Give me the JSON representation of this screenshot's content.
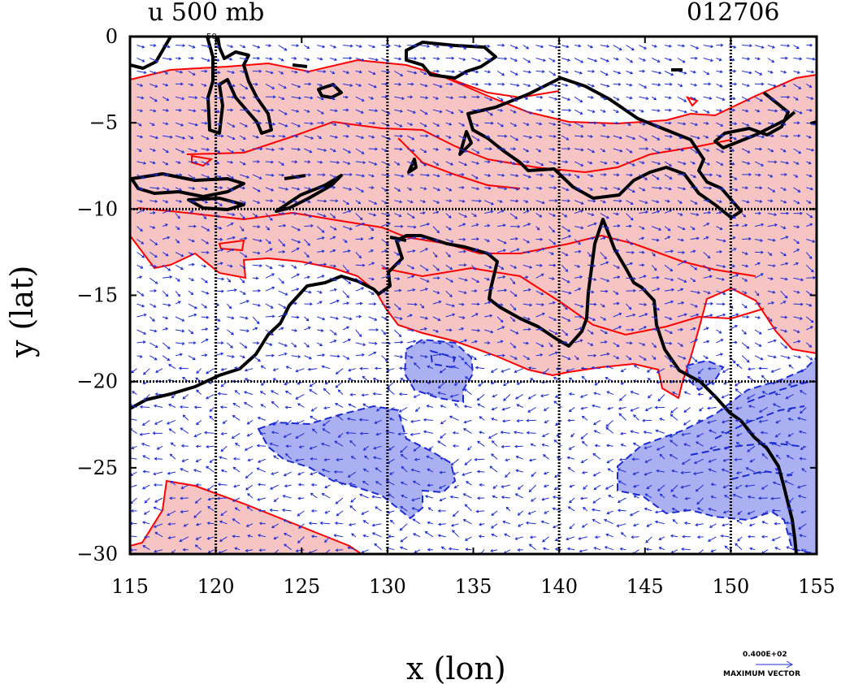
{
  "title_left": "u 500 mb",
  "title_right": "012706",
  "top_marker": "50",
  "x_axis": {
    "label": "x (lon)",
    "range": [
      115,
      155
    ],
    "ticks": [
      "115",
      "120",
      "125",
      "130",
      "135",
      "140",
      "145",
      "150",
      "155"
    ]
  },
  "y_axis": {
    "label": "y (lat)",
    "range": [
      -30,
      0
    ],
    "ticks": [
      "0",
      "−5",
      "−10",
      "−15",
      "−20",
      "−25",
      "−30"
    ]
  },
  "grid": {
    "lon_lines": [
      120,
      130,
      140,
      150
    ],
    "lat_lines": [
      -10,
      -20
    ]
  },
  "vector_key": {
    "value_label": "0.400E+02",
    "caption": "MAXIMUM VECTOR"
  },
  "colors": {
    "positive_fill": "#f7c4c4",
    "positive_contour": "#ff0000",
    "negative_fill": "#aab0f2",
    "negative_contour": "#1a2bd6",
    "vectors": "#1f2fd8",
    "coastline": "#000000"
  }
}
